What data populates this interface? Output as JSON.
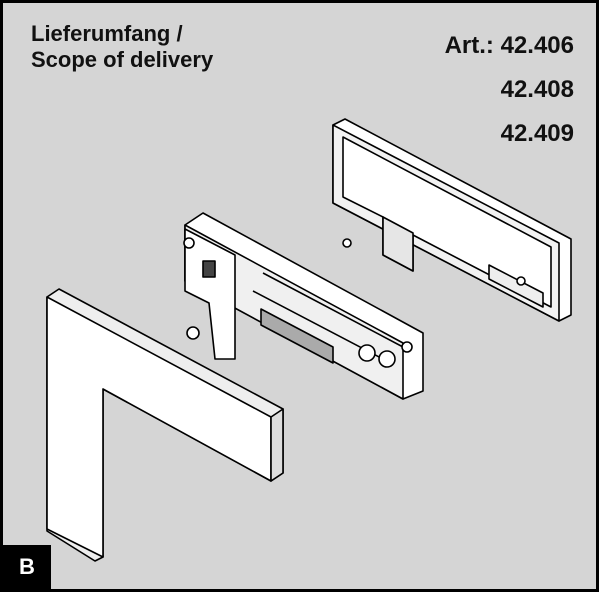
{
  "header": {
    "title_lines": [
      "Lieferumfang /",
      "Scope of delivery"
    ],
    "article_lines": [
      "Art.: 42.406",
      "42.408",
      "42.409"
    ]
  },
  "footer": {
    "label": "B"
  }
}
